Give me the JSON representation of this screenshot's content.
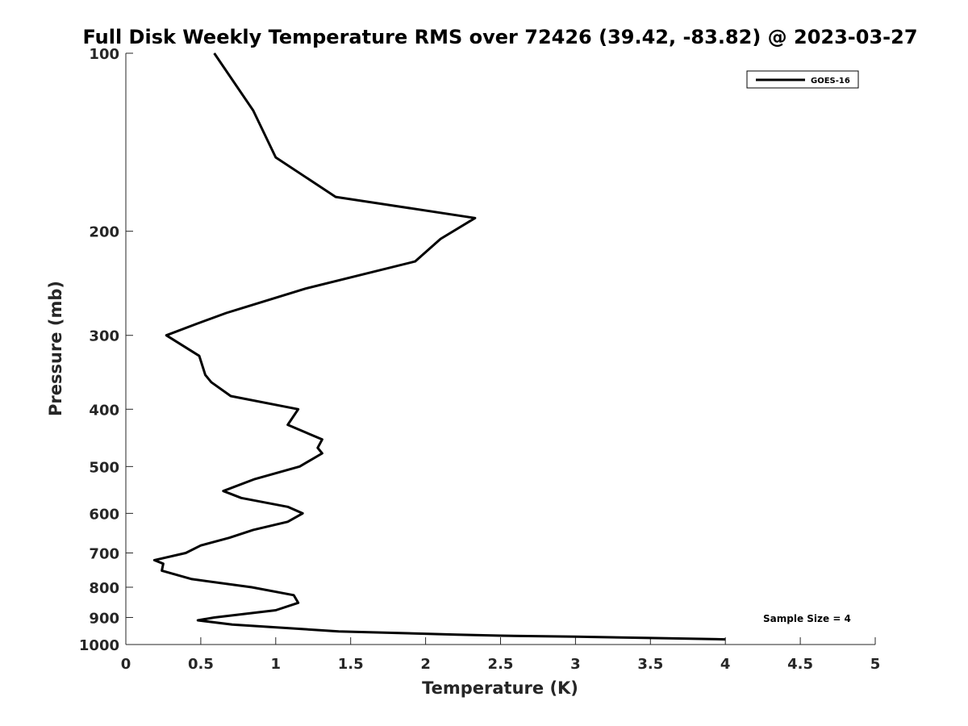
{
  "chart_data": {
    "type": "line",
    "title": "Full Disk Weekly Temperature RMS over 72426 (39.42, -83.82) @ 2023-03-27",
    "xlabel": "Temperature (K)",
    "ylabel": "Pressure (mb)",
    "xlim": [
      0,
      5
    ],
    "ylim": [
      1000,
      100
    ],
    "y_scale": "log",
    "y_reversed": true,
    "x_ticks": [
      "0",
      "0.5",
      "1",
      "1.5",
      "2",
      "2.5",
      "3",
      "3.5",
      "4",
      "4.5",
      "5"
    ],
    "x_tick_values": [
      0,
      0.5,
      1,
      1.5,
      2,
      2.5,
      3,
      3.5,
      4,
      4.5,
      5
    ],
    "y_ticks": [
      "100",
      "200",
      "300",
      "400",
      "500",
      "600",
      "700",
      "800",
      "900",
      "1000"
    ],
    "y_tick_values": [
      100,
      200,
      300,
      400,
      500,
      600,
      700,
      800,
      900,
      1000
    ],
    "grid": false,
    "legend_position": "top-right",
    "annotation": "Sample Size = 4",
    "series": [
      {
        "name": "GOES-16",
        "color": "#000000",
        "points": [
          [
            0.59,
            100
          ],
          [
            0.85,
            125
          ],
          [
            1.0,
            150
          ],
          [
            1.4,
            175
          ],
          [
            2.33,
            190
          ],
          [
            2.1,
            206
          ],
          [
            1.93,
            225
          ],
          [
            1.2,
            250
          ],
          [
            0.67,
            275
          ],
          [
            0.47,
            287
          ],
          [
            0.27,
            300
          ],
          [
            0.49,
            325
          ],
          [
            0.53,
            350
          ],
          [
            0.57,
            360
          ],
          [
            0.7,
            380
          ],
          [
            1.15,
            400
          ],
          [
            1.08,
            425
          ],
          [
            1.31,
            450
          ],
          [
            1.28,
            465
          ],
          [
            1.31,
            475
          ],
          [
            1.16,
            500
          ],
          [
            0.86,
            525
          ],
          [
            0.65,
            550
          ],
          [
            0.77,
            565
          ],
          [
            1.08,
            585
          ],
          [
            1.18,
            600
          ],
          [
            1.08,
            620
          ],
          [
            0.85,
            640
          ],
          [
            0.69,
            660
          ],
          [
            0.5,
            680
          ],
          [
            0.4,
            700
          ],
          [
            0.19,
            720
          ],
          [
            0.25,
            730
          ],
          [
            0.24,
            750
          ],
          [
            0.44,
            775
          ],
          [
            0.84,
            800
          ],
          [
            1.12,
            825
          ],
          [
            1.15,
            850
          ],
          [
            1.0,
            875
          ],
          [
            0.59,
            900
          ],
          [
            0.48,
            910
          ],
          [
            0.71,
            925
          ],
          [
            1.42,
            950
          ],
          [
            2.21,
            962
          ],
          [
            2.5,
            966
          ],
          [
            3.0,
            970
          ],
          [
            3.5,
            975
          ],
          [
            4.0,
            980
          ]
        ]
      }
    ]
  }
}
